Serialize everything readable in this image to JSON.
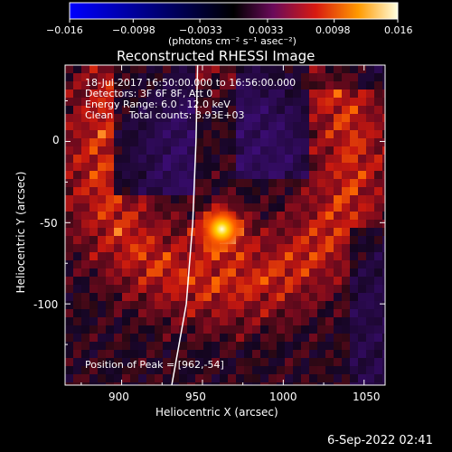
{
  "colorbar": {
    "min_label": "−0.016",
    "tick_labels": [
      "−0.016",
      "−0.0098",
      "−0.0033",
      "0.0033",
      "0.0098",
      "0.016"
    ],
    "units_label": "(photons cm⁻² s⁻¹ asec⁻²)"
  },
  "plot": {
    "title": "Reconstructed RHESSI Image",
    "xlabel": "Heliocentric X (arcsec)",
    "ylabel": "Heliocentric Y (arcsec)",
    "annotations": [
      "18-Jul-2017 16:50:00.000 to 16:56:00.000",
      "Detectors: 3F 6F 8F, Att 0",
      "Energy Range: 6.0 - 12.0 keV",
      "Clean     Total counts: 8.93E+03"
    ],
    "peak_label": "Position of Peak = [962,-54]"
  },
  "footer": {
    "timestamp": "6-Sep-2022 02:41"
  },
  "chart_data": {
    "type": "heatmap",
    "title": "Reconstructed RHESSI Image",
    "xlabel": "Heliocentric X (arcsec)",
    "ylabel": "Heliocentric Y (arcsec)",
    "xlim": [
      865,
      1063
    ],
    "ylim": [
      -150,
      47
    ],
    "xticks": [
      900,
      950,
      1000,
      1050
    ],
    "yticks": [
      0,
      -50,
      -100
    ],
    "colorbar_range": [
      -0.016,
      0.016
    ],
    "colorbar_ticks": [
      -0.016,
      -0.0098,
      -0.0033,
      0.0033,
      0.0098,
      0.016
    ],
    "colormap": "red-temperature",
    "peak": {
      "x": 962,
      "y": -54
    },
    "limb_curve": [
      [
        947,
        47
      ],
      [
        946,
        0
      ],
      [
        944,
        -50
      ],
      [
        940,
        -100
      ],
      [
        931,
        -150
      ]
    ]
  }
}
